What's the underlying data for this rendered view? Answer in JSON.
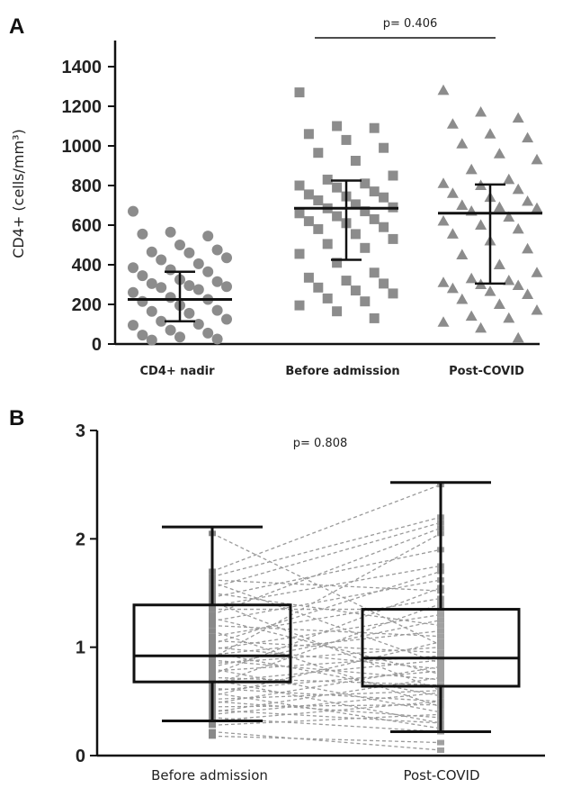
{
  "panels": {
    "a": {
      "letter": "A"
    },
    "b": {
      "letter": "B"
    }
  },
  "chart_data": [
    {
      "panel": "A",
      "type": "scatter",
      "ylabel": "CD4+ (cells/mm³)",
      "ylim": [
        0,
        1500
      ],
      "yticks": [
        0,
        200,
        400,
        600,
        800,
        1000,
        1200,
        1400
      ],
      "categories": [
        "CD4+ nadir",
        "Before admission",
        "Post-COVID"
      ],
      "annotation": "p= 0.406",
      "colors": {
        "points": "#8c8c8c",
        "lines": "#111111"
      },
      "series": [
        {
          "category": "CD4+ nadir",
          "marker": "circle",
          "median": 225,
          "q1": 115,
          "q3": 365,
          "points": [
            670,
            565,
            545,
            555,
            500,
            475,
            465,
            460,
            435,
            425,
            405,
            385,
            375,
            365,
            345,
            325,
            315,
            305,
            295,
            290,
            285,
            275,
            260,
            235,
            225,
            215,
            195,
            170,
            165,
            155,
            125,
            115,
            100,
            95,
            70,
            55,
            45,
            35,
            25,
            20
          ]
        },
        {
          "category": "Before admission",
          "marker": "square",
          "median": 685,
          "q1": 425,
          "q3": 825,
          "points": [
            1270,
            1100,
            1090,
            1060,
            1030,
            990,
            965,
            925,
            850,
            830,
            810,
            800,
            790,
            770,
            755,
            745,
            740,
            725,
            705,
            690,
            685,
            670,
            660,
            645,
            630,
            620,
            610,
            590,
            580,
            555,
            530,
            505,
            485,
            455,
            410,
            360,
            335,
            320,
            305,
            285,
            270,
            255,
            230,
            215,
            195,
            165,
            130
          ]
        },
        {
          "category": "Post-COVID",
          "marker": "triangle",
          "median": 660,
          "q1": 305,
          "q3": 805,
          "points": [
            1280,
            1170,
            1140,
            1110,
            1060,
            1040,
            1010,
            960,
            930,
            880,
            830,
            810,
            800,
            780,
            760,
            740,
            720,
            700,
            690,
            685,
            670,
            640,
            620,
            600,
            580,
            555,
            520,
            480,
            450,
            400,
            360,
            330,
            320,
            310,
            300,
            295,
            280,
            265,
            250,
            225,
            200,
            170,
            140,
            130,
            110,
            80,
            30
          ]
        }
      ]
    },
    {
      "panel": "B",
      "type": "box",
      "ylim": [
        0,
        3
      ],
      "yticks": [
        0,
        1,
        2,
        3
      ],
      "categories": [
        "Before admission",
        "Post-COVID"
      ],
      "annotation": "p= 0.808",
      "boxes": [
        {
          "category": "Before admission",
          "whisker_low": 0.32,
          "q1": 0.68,
          "median": 0.92,
          "q3": 1.39,
          "whisker_high": 2.11
        },
        {
          "category": "Post-COVID",
          "whisker_low": 0.22,
          "q1": 0.64,
          "median": 0.9,
          "q3": 1.35,
          "whisker_high": 2.52
        }
      ],
      "paired": [
        [
          2.05,
          1.02
        ],
        [
          1.7,
          2.5
        ],
        [
          1.65,
          2.2
        ],
        [
          1.62,
          1.52
        ],
        [
          1.6,
          0.85
        ],
        [
          1.55,
          2.15
        ],
        [
          1.5,
          1.2
        ],
        [
          1.46,
          1.9
        ],
        [
          1.42,
          0.6
        ],
        [
          1.38,
          1.75
        ],
        [
          1.35,
          1.35
        ],
        [
          1.3,
          2.1
        ],
        [
          1.27,
          0.75
        ],
        [
          1.24,
          1.62
        ],
        [
          1.2,
          1.1
        ],
        [
          1.15,
          0.45
        ],
        [
          1.1,
          1.45
        ],
        [
          1.06,
          0.95
        ],
        [
          1.03,
          1.7
        ],
        [
          1.0,
          0.8
        ],
        [
          0.98,
          1.3
        ],
        [
          0.95,
          0.55
        ],
        [
          0.93,
          1.15
        ],
        [
          0.9,
          2.05
        ],
        [
          0.88,
          0.7
        ],
        [
          0.85,
          1.0
        ],
        [
          0.82,
          1.25
        ],
        [
          0.8,
          0.4
        ],
        [
          0.78,
          0.92
        ],
        [
          0.75,
          1.55
        ],
        [
          0.72,
          0.65
        ],
        [
          0.7,
          0.3
        ],
        [
          0.68,
          0.88
        ],
        [
          0.65,
          1.4
        ],
        [
          0.62,
          0.5
        ],
        [
          0.6,
          0.78
        ],
        [
          0.58,
          0.25
        ],
        [
          0.55,
          1.05
        ],
        [
          0.52,
          0.6
        ],
        [
          0.5,
          0.35
        ],
        [
          0.48,
          0.82
        ],
        [
          0.45,
          0.47
        ],
        [
          0.42,
          0.3
        ],
        [
          0.4,
          0.72
        ],
        [
          0.38,
          0.58
        ],
        [
          0.35,
          0.22
        ],
        [
          0.32,
          0.5
        ],
        [
          0.28,
          0.38
        ],
        [
          0.22,
          0.05
        ],
        [
          0.18,
          0.12
        ]
      ]
    }
  ]
}
